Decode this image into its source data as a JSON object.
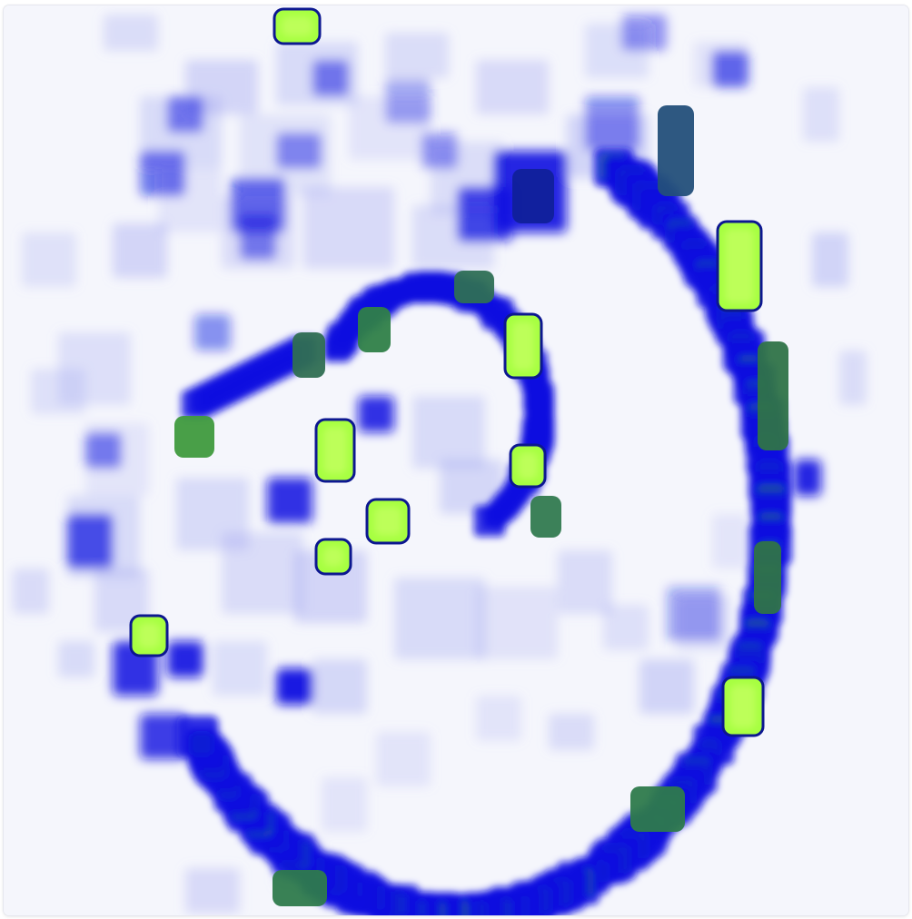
{
  "image": {
    "kind": "density heatmap",
    "colors": {
      "background": "#f5f6fc",
      "low": "#c8cbf3",
      "mid": "#0a10e0",
      "high": "#2d8a45",
      "peak": "#a6ff40",
      "outline": "#0c1790"
    }
  }
}
